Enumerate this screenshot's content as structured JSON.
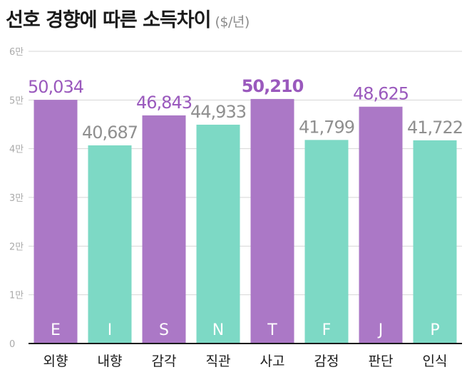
{
  "chart_data": {
    "type": "bar",
    "title": "선호 경향에 따른 소득차이",
    "unit": "($/년)",
    "categories": [
      "외향",
      "내향",
      "감각",
      "직관",
      "사고",
      "감정",
      "판단",
      "인식"
    ],
    "letters": [
      "E",
      "I",
      "S",
      "N",
      "T",
      "F",
      "J",
      "P"
    ],
    "values": [
      50034,
      40687,
      46843,
      44933,
      50210,
      41799,
      48625,
      41722
    ],
    "value_labels": [
      "50,034",
      "40,687",
      "46,843",
      "44,933",
      "50,210",
      "41,799",
      "48,625",
      "41,722"
    ],
    "highlight": [
      true,
      false,
      true,
      false,
      true,
      false,
      true,
      false
    ],
    "bold_value_index": 4,
    "ylim": [
      0,
      60000
    ],
    "yticks": [
      0,
      10000,
      20000,
      30000,
      40000,
      50000,
      60000
    ],
    "ytick_labels": [
      "0",
      "1만",
      "2만",
      "3만",
      "4만",
      "5만",
      "6만"
    ],
    "grid": true,
    "colors": {
      "highlight": "#ab78c6",
      "other": "#7dd9c5",
      "highlight_label": "#9a59bd",
      "other_label": "#8f8f8f",
      "grid": "#d6d6d6",
      "axis": "#1a1a1a",
      "tick_label": "#aaaaaa",
      "letter": "#ffffff"
    }
  }
}
